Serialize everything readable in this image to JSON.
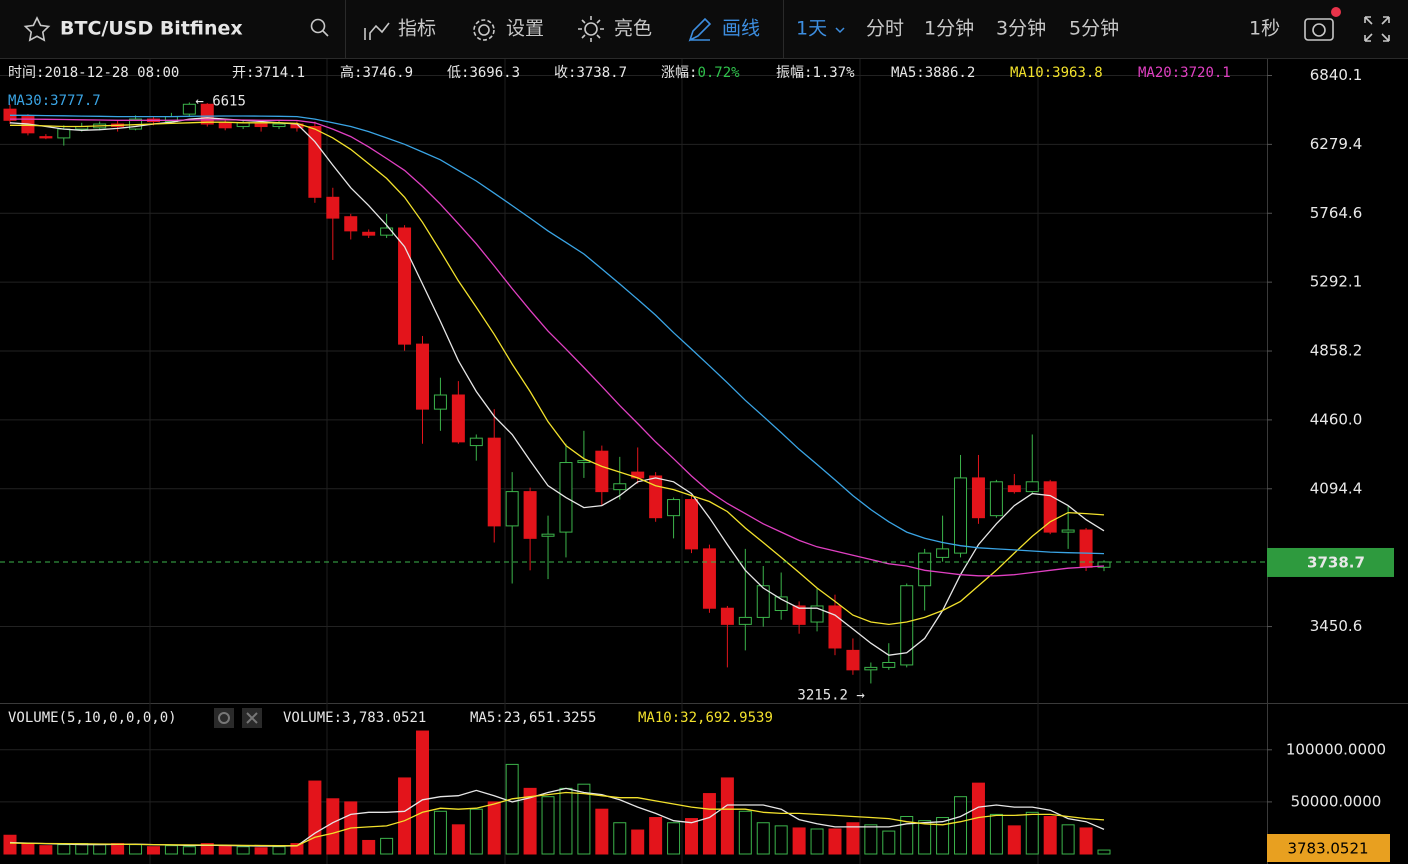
{
  "toolbar": {
    "symbol": "BTC/USD Bitfinex",
    "tools": [
      "指标",
      "设置",
      "亮色",
      "画线"
    ],
    "intervals": [
      "1天",
      "分时",
      "1分钟",
      "3分钟",
      "5分钟"
    ],
    "refresh": "1秒"
  },
  "info_bar": [
    {
      "label": "时间:",
      "value": "2018-12-28 08:00"
    },
    {
      "label": "开:",
      "value": "3714.1"
    },
    {
      "label": "高:",
      "value": "3746.9"
    },
    {
      "label": "低:",
      "value": "3696.3"
    },
    {
      "label": "收:",
      "value": "3738.7"
    },
    {
      "label": "涨幅:",
      "value": "0.72%",
      "color": "#2fc24c"
    },
    {
      "label": "振幅:",
      "value": "1.37%"
    },
    {
      "label": "MA5:",
      "value": "3886.2"
    },
    {
      "label": "MA10:",
      "value": "3963.8",
      "color": "#f2e12c",
      "label_color": "#f2e12c"
    },
    {
      "label": "MA20:",
      "value": "3720.1",
      "color": "#e040c2",
      "label_color": "#e040c2"
    },
    {
      "label": "MA30:",
      "value": "3777.7",
      "color": "#3aa4e4",
      "label_color": "#3aa4e4"
    }
  ],
  "chart_data": [
    {
      "type": "candlestick",
      "up_color": "#3cb44b",
      "down_color": "#e3141b",
      "open": [
        6560,
        6500,
        6340,
        6330,
        6400,
        6410,
        6440,
        6400,
        6480,
        6460,
        6520,
        6600,
        6450,
        6420,
        6440,
        6420,
        6440,
        6420,
        5880,
        5740,
        5630,
        5610,
        5660,
        4900,
        4520,
        4600,
        4320,
        4360,
        3910,
        4080,
        3860,
        3880,
        4230,
        4290,
        4090,
        4180,
        4160,
        3960,
        4040,
        3800,
        3530,
        3460,
        3490,
        3520,
        3540,
        3470,
        3540,
        3350,
        3270,
        3280,
        3290,
        3630,
        3760,
        3780,
        4150,
        3960,
        4110,
        4080,
        4130,
        3880,
        3890,
        3714.1
      ],
      "high": [
        6600,
        6520,
        6360,
        6430,
        6450,
        6460,
        6470,
        6510,
        6500,
        6530,
        6615,
        6610,
        6470,
        6470,
        6460,
        6470,
        6460,
        6460,
        5950,
        5760,
        5650,
        5760,
        5680,
        4950,
        4700,
        4680,
        4380,
        4520,
        4180,
        4100,
        3960,
        4330,
        4400,
        4320,
        4260,
        4310,
        4180,
        4050,
        4060,
        3820,
        3540,
        3800,
        3720,
        3690,
        3560,
        3620,
        3590,
        3400,
        3300,
        3380,
        3640,
        3800,
        3960,
        4270,
        4270,
        4140,
        4170,
        4380,
        4140,
        4010,
        3900,
        3746.9
      ],
      "low": [
        6440,
        6350,
        6320,
        6270,
        6380,
        6390,
        6380,
        6390,
        6430,
        6440,
        6500,
        6420,
        6390,
        6400,
        6380,
        6400,
        6380,
        5840,
        5440,
        5580,
        5590,
        5590,
        4860,
        4330,
        4400,
        4330,
        4240,
        3830,
        3640,
        3700,
        3660,
        3760,
        4150,
        4010,
        4040,
        4120,
        3930,
        3850,
        3780,
        3510,
        3280,
        3350,
        3450,
        3480,
        3420,
        3430,
        3330,
        3250,
        3215.2,
        3270,
        3280,
        3520,
        3740,
        3760,
        3920,
        3950,
        4070,
        4070,
        3870,
        3800,
        3697,
        3696.3
      ],
      "close": [
        6470,
        6370,
        6330,
        6400,
        6420,
        6440,
        6420,
        6480,
        6460,
        6500,
        6600,
        6440,
        6410,
        6450,
        6420,
        6440,
        6410,
        5880,
        5730,
        5640,
        5610,
        5660,
        4900,
        4520,
        4600,
        4340,
        4360,
        3910,
        4080,
        3850,
        3870,
        4230,
        4240,
        4080,
        4120,
        4150,
        3950,
        4040,
        3800,
        3530,
        3460,
        3490,
        3630,
        3580,
        3460,
        3540,
        3360,
        3270,
        3280,
        3300,
        3630,
        3780,
        3800,
        4150,
        3950,
        4130,
        4080,
        4130,
        3880,
        3890,
        3714,
        3738.7
      ],
      "series": [
        {
          "name": "MA5",
          "color": "#e6e6e6",
          "values": [
            6450,
            6440,
            6420,
            6400,
            6390,
            6395,
            6405,
            6420,
            6440,
            6455,
            6480,
            6490,
            6480,
            6470,
            6460,
            6450,
            6440,
            6300,
            6120,
            5950,
            5820,
            5680,
            5530,
            5280,
            5040,
            4800,
            4620,
            4480,
            4380,
            4240,
            4110,
            4050,
            4000,
            4010,
            4060,
            4130,
            4150,
            4130,
            4070,
            3950,
            3820,
            3700,
            3620,
            3570,
            3530,
            3530,
            3500,
            3440,
            3380,
            3330,
            3340,
            3400,
            3520,
            3680,
            3820,
            3920,
            4010,
            4070,
            4060,
            4010,
            3940,
            3886.2
          ]
        },
        {
          "name": "MA10",
          "color": "#f2e12c",
          "values": [
            6430,
            6430,
            6425,
            6420,
            6420,
            6425,
            6430,
            6435,
            6440,
            6445,
            6450,
            6455,
            6455,
            6450,
            6450,
            6450,
            6445,
            6400,
            6330,
            6240,
            6130,
            6020,
            5880,
            5700,
            5500,
            5300,
            5130,
            4960,
            4780,
            4620,
            4450,
            4320,
            4250,
            4210,
            4180,
            4150,
            4110,
            4090,
            4060,
            4030,
            3980,
            3900,
            3830,
            3760,
            3690,
            3620,
            3560,
            3500,
            3470,
            3460,
            3470,
            3490,
            3520,
            3560,
            3630,
            3700,
            3780,
            3860,
            3930,
            3975,
            3970,
            3963.8
          ]
        },
        {
          "name": "MA20",
          "color": "#e040c2",
          "values": [
            6480,
            6480,
            6478,
            6476,
            6474,
            6472,
            6470,
            6470,
            6470,
            6470,
            6472,
            6474,
            6474,
            6472,
            6470,
            6470,
            6468,
            6450,
            6400,
            6340,
            6260,
            6170,
            6080,
            5960,
            5830,
            5690,
            5550,
            5400,
            5250,
            5110,
            4980,
            4870,
            4760,
            4650,
            4540,
            4440,
            4340,
            4250,
            4160,
            4080,
            4020,
            3970,
            3920,
            3880,
            3840,
            3810,
            3790,
            3770,
            3750,
            3730,
            3720,
            3700,
            3690,
            3680,
            3675,
            3675,
            3680,
            3690,
            3700,
            3710,
            3715,
            3720.1
          ]
        },
        {
          "name": "MA30",
          "color": "#3aa4e4",
          "values": [
            6510,
            6510,
            6508,
            6506,
            6504,
            6502,
            6500,
            6500,
            6500,
            6500,
            6502,
            6504,
            6505,
            6505,
            6504,
            6502,
            6500,
            6480,
            6450,
            6420,
            6380,
            6330,
            6280,
            6220,
            6160,
            6080,
            6000,
            5910,
            5820,
            5730,
            5640,
            5560,
            5480,
            5380,
            5280,
            5180,
            5080,
            4970,
            4870,
            4770,
            4670,
            4570,
            4480,
            4390,
            4300,
            4220,
            4140,
            4060,
            3990,
            3930,
            3880,
            3850,
            3830,
            3815,
            3805,
            3800,
            3795,
            3790,
            3785,
            3782,
            3780,
            3777.7
          ]
        }
      ],
      "log_scale": true,
      "ylim": [
        3142,
        6973
      ],
      "yticks": [
        6840.1,
        6279.4,
        5764.6,
        5292.1,
        4858.2,
        {
          "value": 4460,
          "label": "4460.0"
        },
        4094.4,
        3450.6
      ],
      "grid": true,
      "annotations": [
        {
          "label": "← 6615",
          "value": 6615
        },
        {
          "label": "3215.2 →",
          "value": 3215.2
        }
      ]
    },
    {
      "type": "bar",
      "title": "VOLUME(5,10,0,0,0,0)",
      "info": [
        {
          "label": "VOLUME:",
          "value": "3,783.0521"
        },
        {
          "label": "MA5:",
          "value": "23,651.3255"
        },
        {
          "label": "MA10:",
          "value": "32,692.9539",
          "color": "#f2e12c",
          "label_color": "#f2e12c"
        }
      ],
      "up_color": "#3cb44b",
      "down_color": "#e3141b",
      "values": [
        18000,
        10000,
        8000,
        9000,
        10000,
        9000,
        10000,
        9000,
        7000,
        8000,
        7000,
        10000,
        8000,
        7000,
        6000,
        7000,
        10000,
        70000,
        53000,
        50000,
        13000,
        15000,
        73000,
        118000,
        41000,
        28000,
        43000,
        50000,
        86000,
        63000,
        55000,
        63000,
        67000,
        43000,
        30000,
        23000,
        35000,
        30000,
        34000,
        58000,
        73000,
        41000,
        30000,
        27000,
        25000,
        24000,
        24000,
        30000,
        28000,
        22000,
        36000,
        32000,
        35000,
        55000,
        68000,
        38000,
        27000,
        40000,
        36000,
        28000,
        25000,
        3783.0521
      ],
      "series": [
        {
          "name": "MA5",
          "color": "#e6e6e6",
          "values": [
            11000,
            10500,
            10000,
            9500,
            9000,
            9000,
            9200,
            9400,
            9000,
            8600,
            8200,
            8400,
            8200,
            8000,
            7600,
            7600,
            7800,
            20000,
            30000,
            38000,
            40000,
            40000,
            41000,
            52000,
            55000,
            56000,
            61000,
            56000,
            50000,
            54000,
            59000,
            63000,
            59000,
            57000,
            52000,
            45000,
            39000,
            32000,
            30000,
            35000,
            47000,
            47000,
            47000,
            43000,
            33000,
            29000,
            26000,
            26000,
            26000,
            26000,
            29000,
            30000,
            31000,
            36000,
            45000,
            47000,
            45000,
            45000,
            42000,
            34000,
            31000,
            23651.3255
          ]
        },
        {
          "name": "MA10",
          "color": "#f2e12c",
          "values": [
            10500,
            10300,
            10100,
            10000,
            9800,
            9600,
            9400,
            9200,
            9000,
            8800,
            8700,
            8600,
            8500,
            8300,
            8200,
            8000,
            8000,
            16000,
            20000,
            25000,
            26000,
            27000,
            32000,
            40000,
            44000,
            43000,
            44000,
            48000,
            53000,
            55000,
            57000,
            59000,
            58000,
            56000,
            54000,
            54000,
            51000,
            48000,
            45000,
            43000,
            43000,
            43000,
            40000,
            39000,
            39000,
            38000,
            37000,
            36000,
            35000,
            34000,
            31000,
            29000,
            28000,
            31000,
            35000,
            37000,
            37000,
            38000,
            38000,
            36000,
            34000,
            32692.9539
          ]
        }
      ],
      "ylim": [
        0,
        143000
      ],
      "yticks": [
        {
          "value": 100000,
          "label": "100000.0000"
        },
        {
          "value": 50000,
          "label": "50000.0000"
        }
      ],
      "grid": true
    }
  ]
}
